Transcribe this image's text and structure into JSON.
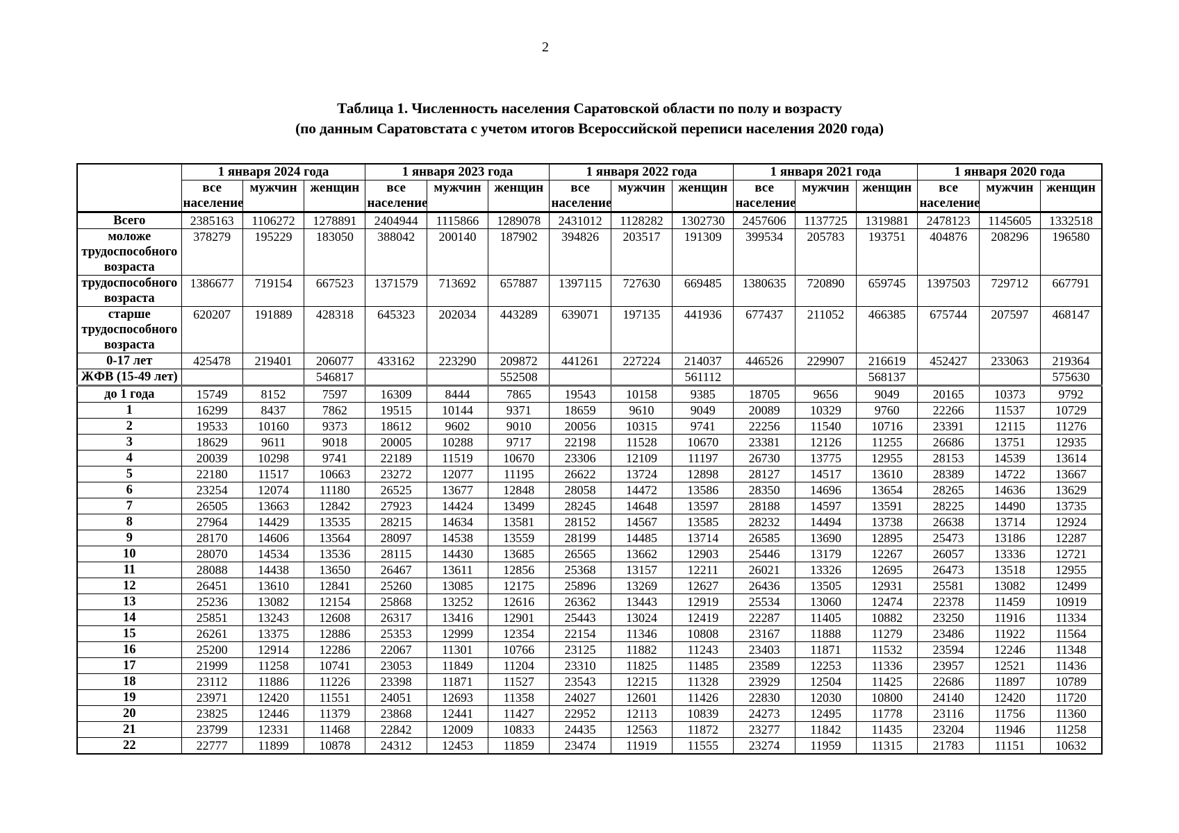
{
  "page": {
    "number": "2"
  },
  "title": {
    "line1": "Таблица 1. Численность населения Саратовской области по полу и возрасту",
    "line2": "(по данным Саратовстата с учетом итогов Всероссийской переписи населения 2020 года)"
  },
  "table": {
    "corner_label": "",
    "year_headers": [
      "1 января 2024 года",
      "1 января 2023 года",
      "1 января 2022 года",
      "1 января 2021 года",
      "1 января 2020 года"
    ],
    "sub_headers": [
      "все население",
      "мужчин",
      "женщин"
    ],
    "rows": [
      {
        "label": "Всего",
        "values": [
          "2385163",
          "1106272",
          "1278891",
          "2404944",
          "1115866",
          "1289078",
          "2431012",
          "1128282",
          "1302730",
          "2457606",
          "1137725",
          "1319881",
          "2478123",
          "1145605",
          "1332518"
        ]
      },
      {
        "label": "моложе трудоспособного возраста",
        "values": [
          "378279",
          "195229",
          "183050",
          "388042",
          "200140",
          "187902",
          "394826",
          "203517",
          "191309",
          "399534",
          "205783",
          "193751",
          "404876",
          "208296",
          "196580"
        ]
      },
      {
        "label": "трудоспособного возраста",
        "values": [
          "1386677",
          "719154",
          "667523",
          "1371579",
          "713692",
          "657887",
          "1397115",
          "727630",
          "669485",
          "1380635",
          "720890",
          "659745",
          "1397503",
          "729712",
          "667791"
        ]
      },
      {
        "label": "старше трудоспособного возраста",
        "values": [
          "620207",
          "191889",
          "428318",
          "645323",
          "202034",
          "443289",
          "639071",
          "197135",
          "441936",
          "677437",
          "211052",
          "466385",
          "675744",
          "207597",
          "468147"
        ]
      },
      {
        "label": "0-17 лет",
        "values": [
          "425478",
          "219401",
          "206077",
          "433162",
          "223290",
          "209872",
          "441261",
          "227224",
          "214037",
          "446526",
          "229907",
          "216619",
          "452427",
          "233063",
          "219364"
        ]
      },
      {
        "label": "ЖФВ (15-49 лет)",
        "values": [
          "",
          "",
          "546817",
          "",
          "",
          "552508",
          "",
          "",
          "561112",
          "",
          "",
          "568137",
          "",
          "",
          "575630"
        ]
      },
      {
        "label": "до 1 года",
        "values": [
          "15749",
          "8152",
          "7597",
          "16309",
          "8444",
          "7865",
          "19543",
          "10158",
          "9385",
          "18705",
          "9656",
          "9049",
          "20165",
          "10373",
          "9792"
        ]
      },
      {
        "label": "1",
        "values": [
          "16299",
          "8437",
          "7862",
          "19515",
          "10144",
          "9371",
          "18659",
          "9610",
          "9049",
          "20089",
          "10329",
          "9760",
          "22266",
          "11537",
          "10729"
        ]
      },
      {
        "label": "2",
        "values": [
          "19533",
          "10160",
          "9373",
          "18612",
          "9602",
          "9010",
          "20056",
          "10315",
          "9741",
          "22256",
          "11540",
          "10716",
          "23391",
          "12115",
          "11276"
        ]
      },
      {
        "label": "3",
        "values": [
          "18629",
          "9611",
          "9018",
          "20005",
          "10288",
          "9717",
          "22198",
          "11528",
          "10670",
          "23381",
          "12126",
          "11255",
          "26686",
          "13751",
          "12935"
        ]
      },
      {
        "label": "4",
        "values": [
          "20039",
          "10298",
          "9741",
          "22189",
          "11519",
          "10670",
          "23306",
          "12109",
          "11197",
          "26730",
          "13775",
          "12955",
          "28153",
          "14539",
          "13614"
        ]
      },
      {
        "label": "5",
        "values": [
          "22180",
          "11517",
          "10663",
          "23272",
          "12077",
          "11195",
          "26622",
          "13724",
          "12898",
          "28127",
          "14517",
          "13610",
          "28389",
          "14722",
          "13667"
        ]
      },
      {
        "label": "6",
        "values": [
          "23254",
          "12074",
          "11180",
          "26525",
          "13677",
          "12848",
          "28058",
          "14472",
          "13586",
          "28350",
          "14696",
          "13654",
          "28265",
          "14636",
          "13629"
        ]
      },
      {
        "label": "7",
        "values": [
          "26505",
          "13663",
          "12842",
          "27923",
          "14424",
          "13499",
          "28245",
          "14648",
          "13597",
          "28188",
          "14597",
          "13591",
          "28225",
          "14490",
          "13735"
        ]
      },
      {
        "label": "8",
        "values": [
          "27964",
          "14429",
          "13535",
          "28215",
          "14634",
          "13581",
          "28152",
          "14567",
          "13585",
          "28232",
          "14494",
          "13738",
          "26638",
          "13714",
          "12924"
        ]
      },
      {
        "label": "9",
        "values": [
          "28170",
          "14606",
          "13564",
          "28097",
          "14538",
          "13559",
          "28199",
          "14485",
          "13714",
          "26585",
          "13690",
          "12895",
          "25473",
          "13186",
          "12287"
        ]
      },
      {
        "label": "10",
        "values": [
          "28070",
          "14534",
          "13536",
          "28115",
          "14430",
          "13685",
          "26565",
          "13662",
          "12903",
          "25446",
          "13179",
          "12267",
          "26057",
          "13336",
          "12721"
        ]
      },
      {
        "label": "11",
        "values": [
          "28088",
          "14438",
          "13650",
          "26467",
          "13611",
          "12856",
          "25368",
          "13157",
          "12211",
          "26021",
          "13326",
          "12695",
          "26473",
          "13518",
          "12955"
        ]
      },
      {
        "label": "12",
        "values": [
          "26451",
          "13610",
          "12841",
          "25260",
          "13085",
          "12175",
          "25896",
          "13269",
          "12627",
          "26436",
          "13505",
          "12931",
          "25581",
          "13082",
          "12499"
        ]
      },
      {
        "label": "13",
        "values": [
          "25236",
          "13082",
          "12154",
          "25868",
          "13252",
          "12616",
          "26362",
          "13443",
          "12919",
          "25534",
          "13060",
          "12474",
          "22378",
          "11459",
          "10919"
        ]
      },
      {
        "label": "14",
        "values": [
          "25851",
          "13243",
          "12608",
          "26317",
          "13416",
          "12901",
          "25443",
          "13024",
          "12419",
          "22287",
          "11405",
          "10882",
          "23250",
          "11916",
          "11334"
        ]
      },
      {
        "label": "15",
        "values": [
          "26261",
          "13375",
          "12886",
          "25353",
          "12999",
          "12354",
          "22154",
          "11346",
          "10808",
          "23167",
          "11888",
          "11279",
          "23486",
          "11922",
          "11564"
        ]
      },
      {
        "label": "16",
        "values": [
          "25200",
          "12914",
          "12286",
          "22067",
          "11301",
          "10766",
          "23125",
          "11882",
          "11243",
          "23403",
          "11871",
          "11532",
          "23594",
          "12246",
          "11348"
        ]
      },
      {
        "label": "17",
        "values": [
          "21999",
          "11258",
          "10741",
          "23053",
          "11849",
          "11204",
          "23310",
          "11825",
          "11485",
          "23589",
          "12253",
          "11336",
          "23957",
          "12521",
          "11436"
        ]
      },
      {
        "label": "18",
        "values": [
          "23112",
          "11886",
          "11226",
          "23398",
          "11871",
          "11527",
          "23543",
          "12215",
          "11328",
          "23929",
          "12504",
          "11425",
          "22686",
          "11897",
          "10789"
        ]
      },
      {
        "label": "19",
        "values": [
          "23971",
          "12420",
          "11551",
          "24051",
          "12693",
          "11358",
          "24027",
          "12601",
          "11426",
          "22830",
          "12030",
          "10800",
          "24140",
          "12420",
          "11720"
        ]
      },
      {
        "label": "20",
        "values": [
          "23825",
          "12446",
          "11379",
          "23868",
          "12441",
          "11427",
          "22952",
          "12113",
          "10839",
          "24273",
          "12495",
          "11778",
          "23116",
          "11756",
          "11360"
        ]
      },
      {
        "label": "21",
        "values": [
          "23799",
          "12331",
          "11468",
          "22842",
          "12009",
          "10833",
          "24435",
          "12563",
          "11872",
          "23277",
          "11842",
          "11435",
          "23204",
          "11946",
          "11258"
        ]
      },
      {
        "label": "22",
        "values": [
          "22777",
          "11899",
          "10878",
          "24312",
          "12453",
          "11859",
          "23474",
          "11919",
          "11555",
          "23274",
          "11959",
          "11315",
          "21783",
          "11151",
          "10632"
        ]
      }
    ]
  }
}
